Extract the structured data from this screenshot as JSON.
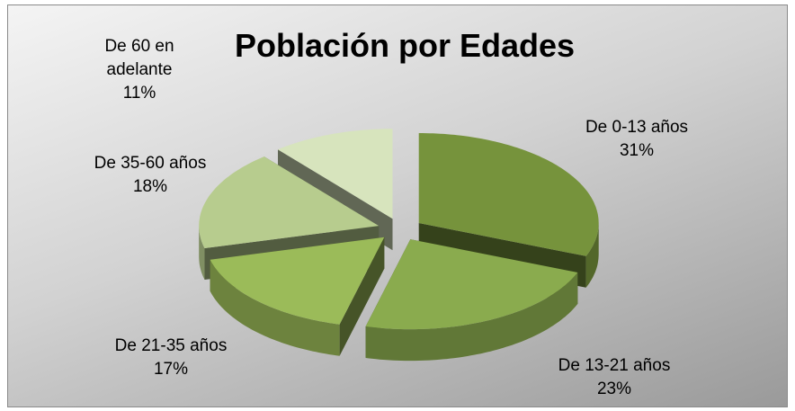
{
  "chart_data": {
    "type": "pie",
    "title": "Población por Edades",
    "categories": [
      "De 0-13 años",
      "De 13-21 años",
      "De 21-35 años",
      "De 35-60 años",
      "De 60 en adelante"
    ],
    "values": [
      31,
      23,
      17,
      18,
      11
    ],
    "value_labels": [
      "31%",
      "23%",
      "17%",
      "18%",
      "11%"
    ],
    "colors": [
      "#76933c",
      "#8aab4e",
      "#9bbb59",
      "#b7cc8e",
      "#d7e4bd"
    ],
    "exploded": true,
    "three_d": true
  }
}
